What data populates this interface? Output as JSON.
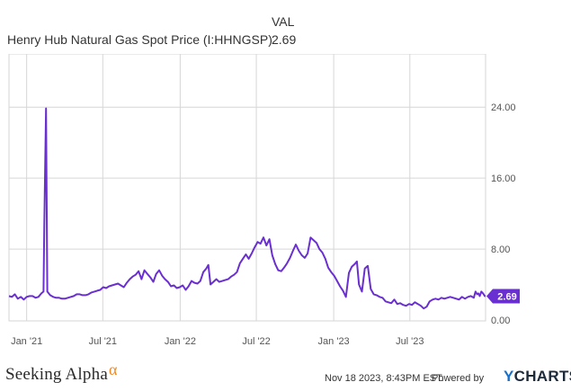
{
  "legend": {
    "header": "VAL",
    "series_name": "Henry Hub Natural Gas Spot Price (I:HHNGSP)",
    "series_value": "2.69"
  },
  "footer": {
    "brand": "Seeking Alpha",
    "brand_mark": "α",
    "timestamp": "Nov 18 2023, 8:43PM EST.",
    "powered_by": "Powered by",
    "ycharts_y": "Y",
    "ycharts_rest": "CHARTS"
  },
  "colors": {
    "line": "#6a2fd0",
    "grid": "#d6d6d6",
    "tick_text": "#555555",
    "badge_bg": "#6a2fd0",
    "badge_text": "#ffffff"
  },
  "chart_data": {
    "type": "line",
    "series": [
      {
        "name": "Henry Hub Natural Gas Spot Price (I:HHNGSP)",
        "points": [
          [
            "2020-11-20",
            2.7
          ],
          [
            "2020-11-27",
            2.6
          ],
          [
            "2020-12-04",
            2.9
          ],
          [
            "2020-12-11",
            2.4
          ],
          [
            "2020-12-18",
            2.6
          ],
          [
            "2020-12-25",
            2.3
          ],
          [
            "2021-01-01",
            2.6
          ],
          [
            "2021-01-08",
            2.7
          ],
          [
            "2021-01-15",
            2.7
          ],
          [
            "2021-01-22",
            2.5
          ],
          [
            "2021-01-29",
            2.6
          ],
          [
            "2021-02-05",
            3.0
          ],
          [
            "2021-02-10",
            3.2
          ],
          [
            "2021-02-12",
            11.0
          ],
          [
            "2021-02-16",
            23.86
          ],
          [
            "2021-02-19",
            3.2
          ],
          [
            "2021-02-26",
            2.8
          ],
          [
            "2021-03-05",
            2.6
          ],
          [
            "2021-03-12",
            2.5
          ],
          [
            "2021-03-19",
            2.5
          ],
          [
            "2021-03-26",
            2.4
          ],
          [
            "2021-04-02",
            2.4
          ],
          [
            "2021-04-09",
            2.5
          ],
          [
            "2021-04-16",
            2.6
          ],
          [
            "2021-04-23",
            2.7
          ],
          [
            "2021-04-30",
            2.9
          ],
          [
            "2021-05-07",
            2.9
          ],
          [
            "2021-05-14",
            2.8
          ],
          [
            "2021-05-21",
            2.8
          ],
          [
            "2021-05-28",
            2.9
          ],
          [
            "2021-06-04",
            3.1
          ],
          [
            "2021-06-11",
            3.2
          ],
          [
            "2021-06-18",
            3.3
          ],
          [
            "2021-06-25",
            3.4
          ],
          [
            "2021-07-02",
            3.7
          ],
          [
            "2021-07-09",
            3.6
          ],
          [
            "2021-07-16",
            3.8
          ],
          [
            "2021-07-23",
            3.9
          ],
          [
            "2021-07-30",
            4.0
          ],
          [
            "2021-08-06",
            4.1
          ],
          [
            "2021-08-13",
            3.9
          ],
          [
            "2021-08-20",
            3.7
          ],
          [
            "2021-08-27",
            4.2
          ],
          [
            "2021-09-03",
            4.6
          ],
          [
            "2021-09-10",
            4.9
          ],
          [
            "2021-09-17",
            5.1
          ],
          [
            "2021-09-24",
            5.5
          ],
          [
            "2021-10-01",
            4.6
          ],
          [
            "2021-10-08",
            5.6
          ],
          [
            "2021-10-15",
            5.2
          ],
          [
            "2021-10-22",
            4.8
          ],
          [
            "2021-10-29",
            4.3
          ],
          [
            "2021-11-05",
            5.2
          ],
          [
            "2021-11-12",
            5.6
          ],
          [
            "2021-11-19",
            5.0
          ],
          [
            "2021-11-26",
            4.6
          ],
          [
            "2021-12-03",
            4.3
          ],
          [
            "2021-12-10",
            3.8
          ],
          [
            "2021-12-17",
            3.9
          ],
          [
            "2021-12-24",
            3.6
          ],
          [
            "2021-12-31",
            3.7
          ],
          [
            "2022-01-07",
            3.9
          ],
          [
            "2022-01-14",
            3.4
          ],
          [
            "2022-01-21",
            3.8
          ],
          [
            "2022-01-28",
            4.4
          ],
          [
            "2022-02-04",
            4.2
          ],
          [
            "2022-02-11",
            4.1
          ],
          [
            "2022-02-18",
            4.4
          ],
          [
            "2022-02-25",
            5.4
          ],
          [
            "2022-03-04",
            5.8
          ],
          [
            "2022-03-09",
            6.2
          ],
          [
            "2022-03-14",
            4.0
          ],
          [
            "2022-03-21",
            4.3
          ],
          [
            "2022-03-28",
            4.6
          ],
          [
            "2022-04-04",
            4.3
          ],
          [
            "2022-04-11",
            4.4
          ],
          [
            "2022-04-18",
            4.5
          ],
          [
            "2022-04-25",
            4.6
          ],
          [
            "2022-05-02",
            4.9
          ],
          [
            "2022-05-09",
            5.1
          ],
          [
            "2022-05-16",
            5.4
          ],
          [
            "2022-05-23",
            6.4
          ],
          [
            "2022-05-30",
            6.9
          ],
          [
            "2022-06-06",
            7.4
          ],
          [
            "2022-06-13",
            6.9
          ],
          [
            "2022-06-20",
            7.5
          ],
          [
            "2022-06-27",
            8.2
          ],
          [
            "2022-07-04",
            8.8
          ],
          [
            "2022-07-11",
            8.6
          ],
          [
            "2022-07-18",
            9.3
          ],
          [
            "2022-07-25",
            8.4
          ],
          [
            "2022-08-01",
            9.1
          ],
          [
            "2022-08-08",
            7.3
          ],
          [
            "2022-08-15",
            6.3
          ],
          [
            "2022-08-22",
            5.6
          ],
          [
            "2022-08-29",
            5.5
          ],
          [
            "2022-09-05",
            5.9
          ],
          [
            "2022-09-12",
            6.4
          ],
          [
            "2022-09-19",
            7.0
          ],
          [
            "2022-09-26",
            7.8
          ],
          [
            "2022-10-03",
            8.5
          ],
          [
            "2022-10-10",
            7.8
          ],
          [
            "2022-10-17",
            7.3
          ],
          [
            "2022-10-24",
            7.0
          ],
          [
            "2022-10-31",
            7.5
          ],
          [
            "2022-11-07",
            9.3
          ],
          [
            "2022-11-14",
            9.0
          ],
          [
            "2022-11-21",
            8.7
          ],
          [
            "2022-11-28",
            8.0
          ],
          [
            "2022-12-05",
            7.6
          ],
          [
            "2022-12-12",
            6.9
          ],
          [
            "2022-12-19",
            5.9
          ],
          [
            "2022-12-26",
            5.4
          ],
          [
            "2023-01-02",
            5.0
          ],
          [
            "2023-01-09",
            4.4
          ],
          [
            "2023-01-16",
            3.8
          ],
          [
            "2023-01-23",
            3.3
          ],
          [
            "2023-01-30",
            2.6
          ],
          [
            "2023-02-06",
            5.3
          ],
          [
            "2023-02-13",
            6.0
          ],
          [
            "2023-02-20",
            6.3
          ],
          [
            "2023-02-25",
            6.6
          ],
          [
            "2023-03-02",
            4.0
          ],
          [
            "2023-03-09",
            3.2
          ],
          [
            "2023-03-16",
            5.8
          ],
          [
            "2023-03-23",
            6.1
          ],
          [
            "2023-03-30",
            3.5
          ],
          [
            "2023-04-06",
            2.9
          ],
          [
            "2023-04-13",
            2.8
          ],
          [
            "2023-04-20",
            2.6
          ],
          [
            "2023-04-27",
            2.5
          ],
          [
            "2023-05-04",
            2.1
          ],
          [
            "2023-05-11",
            2.0
          ],
          [
            "2023-05-18",
            1.9
          ],
          [
            "2023-05-25",
            2.3
          ],
          [
            "2023-06-01",
            1.8
          ],
          [
            "2023-06-08",
            1.9
          ],
          [
            "2023-06-15",
            1.7
          ],
          [
            "2023-06-22",
            1.6
          ],
          [
            "2023-06-29",
            1.8
          ],
          [
            "2023-07-06",
            1.7
          ],
          [
            "2023-07-13",
            2.0
          ],
          [
            "2023-07-20",
            1.8
          ],
          [
            "2023-07-27",
            1.6
          ],
          [
            "2023-08-03",
            1.3
          ],
          [
            "2023-08-10",
            1.5
          ],
          [
            "2023-08-17",
            2.1
          ],
          [
            "2023-08-24",
            2.3
          ],
          [
            "2023-08-31",
            2.4
          ],
          [
            "2023-09-07",
            2.3
          ],
          [
            "2023-09-14",
            2.5
          ],
          [
            "2023-09-21",
            2.4
          ],
          [
            "2023-09-28",
            2.5
          ],
          [
            "2023-10-05",
            2.6
          ],
          [
            "2023-10-12",
            2.5
          ],
          [
            "2023-10-19",
            2.4
          ],
          [
            "2023-10-26",
            2.3
          ],
          [
            "2023-11-02",
            2.6
          ],
          [
            "2023-11-09",
            2.4
          ],
          [
            "2023-11-16",
            2.6
          ],
          [
            "2023-11-23",
            2.7
          ],
          [
            "2023-11-30",
            2.5
          ],
          [
            "2023-12-04",
            3.2
          ],
          [
            "2023-12-08",
            2.9
          ],
          [
            "2023-12-11",
            3.0
          ],
          [
            "2023-12-14",
            2.7
          ],
          [
            "2023-12-18",
            3.2
          ],
          [
            "2023-12-22",
            3.0
          ],
          [
            "2023-12-26",
            2.7
          ],
          [
            "2023-12-28",
            2.69
          ]
        ]
      }
    ],
    "x_ticks": [
      {
        "date": "2021-01-01",
        "label": "Jan '21"
      },
      {
        "date": "2021-07-01",
        "label": "Jul '21"
      },
      {
        "date": "2022-01-01",
        "label": "Jan '22"
      },
      {
        "date": "2022-07-01",
        "label": "Jul '22"
      },
      {
        "date": "2023-01-01",
        "label": "Jan '23"
      },
      {
        "date": "2023-07-01",
        "label": "Jul '23"
      }
    ],
    "y_ticks": [
      {
        "value": 0,
        "label": "0.00"
      },
      {
        "value": 8,
        "label": "8.00"
      },
      {
        "value": 16,
        "label": "16.00"
      },
      {
        "value": 24,
        "label": "24.00"
      }
    ],
    "xlim": [
      "2020-11-20",
      "2023-12-28"
    ],
    "ylim": [
      0,
      30
    ],
    "last_value_badge": "2.69",
    "grid": true,
    "y_axis_position": "right"
  }
}
